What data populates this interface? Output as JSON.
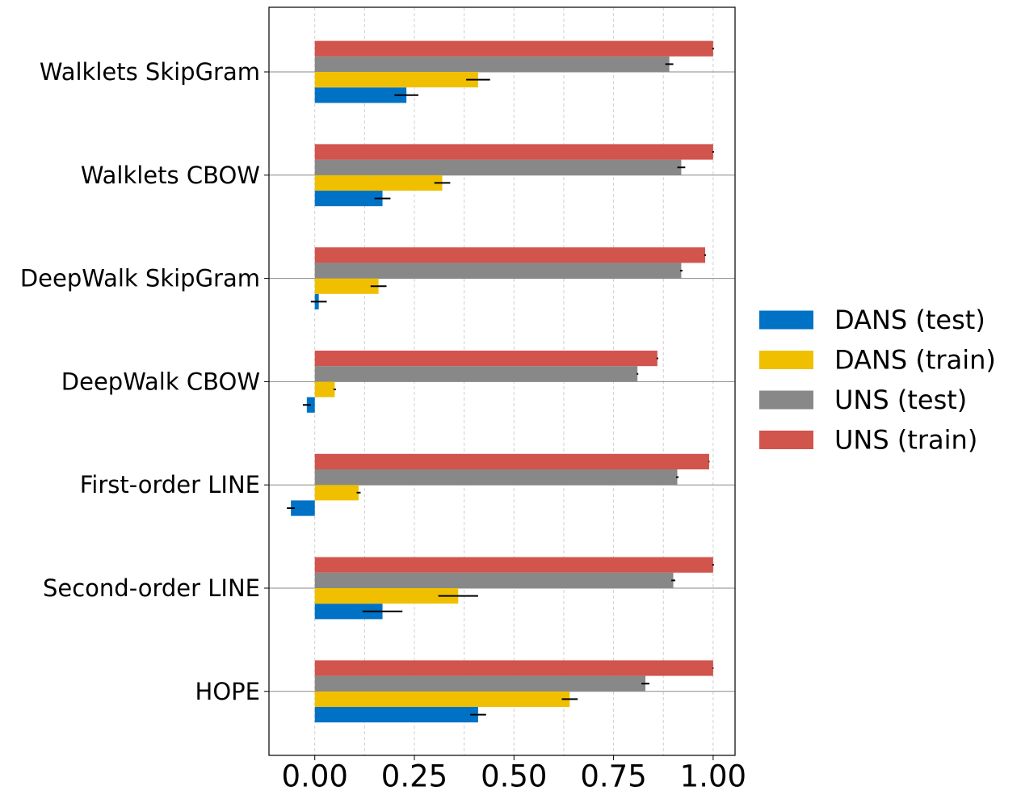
{
  "chart_data": {
    "type": "bar",
    "orientation": "horizontal",
    "categories": [
      "Walklets SkipGram",
      "Walklets CBOW",
      "DeepWalk SkipGram",
      "DeepWalk CBOW",
      "First-order LINE",
      "Second-order LINE",
      "HOPE"
    ],
    "series": [
      {
        "name": "DANS (test)",
        "color": "#0072C6",
        "values": [
          0.23,
          0.17,
          0.01,
          -0.02,
          -0.06,
          0.17,
          0.41
        ],
        "errors": [
          0.03,
          0.02,
          0.02,
          0.01,
          0.01,
          0.05,
          0.02
        ]
      },
      {
        "name": "DANS (train)",
        "color": "#F0C000",
        "values": [
          0.41,
          0.32,
          0.16,
          0.05,
          0.11,
          0.36,
          0.64
        ],
        "errors": [
          0.03,
          0.02,
          0.02,
          0.003,
          0.005,
          0.05,
          0.02
        ]
      },
      {
        "name": "UNS (test)",
        "color": "#888888",
        "values": [
          0.89,
          0.92,
          0.92,
          0.81,
          0.91,
          0.9,
          0.83
        ],
        "errors": [
          0.01,
          0.01,
          0.003,
          0.002,
          0.003,
          0.005,
          0.01
        ]
      },
      {
        "name": "UNS (train)",
        "color": "#D1544D",
        "values": [
          1.0,
          1.0,
          0.98,
          0.86,
          0.99,
          1.0,
          1.0
        ],
        "errors": [
          0.002,
          0.002,
          0.002,
          0.002,
          0.001,
          0.002,
          0.001
        ]
      }
    ],
    "xticks": [
      "0.00",
      "0.25",
      "0.50",
      "0.75",
      "1.00"
    ],
    "xlim": [
      -0.115,
      1.055
    ],
    "grid": "vertical dashed",
    "legend_position": "right"
  }
}
